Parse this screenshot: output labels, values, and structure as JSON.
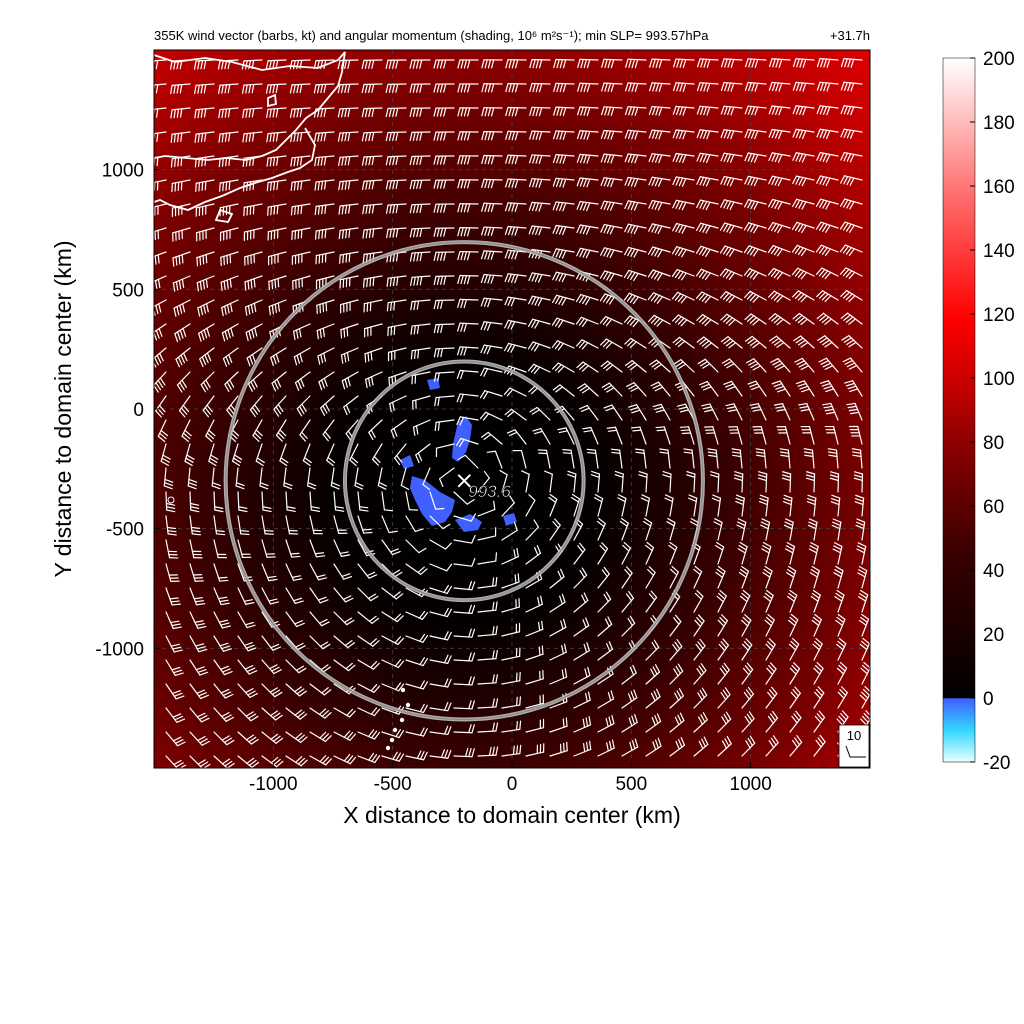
{
  "chart_data": {
    "type": "heatmap",
    "title": "355K wind vector (barbs, kt) and angular momentum (shading, 10⁶ m²s⁻¹); min SLP= 993.57hPa",
    "forecast_time": "+31.7h",
    "xlabel": "X distance to domain center (km)",
    "ylabel": "Y distance to domain center (km)",
    "xlim": [
      -1500,
      1500
    ],
    "ylim": [
      -1500,
      1500
    ],
    "xticks": [
      -1000,
      -500,
      0,
      500,
      1000
    ],
    "yticks": [
      -1000,
      -500,
      0,
      500,
      1000
    ],
    "xtick_labels": [
      "-1000",
      "-500",
      "0",
      "500",
      "1000"
    ],
    "ytick_labels": [
      "-1000",
      "-500",
      "0",
      "500",
      "1000"
    ],
    "grid": true,
    "grid_style": "dashed",
    "colorbar": {
      "min": -20,
      "max": 200,
      "ticks": [
        200,
        180,
        160,
        140,
        120,
        100,
        80,
        60,
        40,
        20,
        0,
        -20
      ],
      "tick_labels": [
        "200",
        "180",
        "160",
        "140",
        "120",
        "100",
        "80",
        "60",
        "40",
        "20",
        "0",
        "-20"
      ],
      "colors": {
        "negative_low": "#e0ffff",
        "negative_mid": "#40c8ff",
        "zero": "#3f5fff",
        "low": "#000000",
        "mid": "#8b0000",
        "high": "#ff0000",
        "top": "#ffffff"
      }
    },
    "storm_center": {
      "x": -200,
      "y": -300,
      "label": "993.6"
    },
    "circles": [
      {
        "center_x": -200,
        "center_y": -300,
        "radius_km": 500
      },
      {
        "center_x": -200,
        "center_y": -300,
        "radius_km": 1000
      }
    ],
    "barb_reference": {
      "label": "10",
      "speed_kt": 10
    },
    "negative_regions": [
      {
        "x": -210,
        "y": -100,
        "note": "elongated blue patch"
      },
      {
        "x": -350,
        "y": -400,
        "note": "blue patch southwest of center"
      }
    ],
    "coastline": "Japan coastline, upper-left corner"
  },
  "colors": {
    "background": "#ffffff",
    "barb": "#ffffff",
    "circle": "#c8c8c8",
    "coast": "#ffffff"
  }
}
